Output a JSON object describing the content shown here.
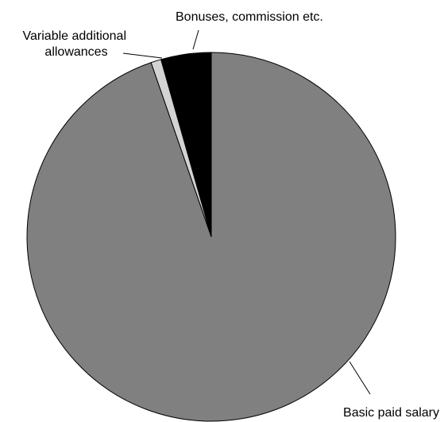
{
  "chart_data": {
    "type": "pie",
    "slices": [
      {
        "label": "Basic paid salary",
        "value": 94.7,
        "color": "#808080",
        "label_lines": [
          "Basic paid salary"
        ]
      },
      {
        "label": "Variable additional allowances",
        "value": 0.9,
        "color": "#d3d3d3",
        "label_lines": [
          "Variable additional",
          "allowances"
        ]
      },
      {
        "label": "Bonuses, commission etc.",
        "value": 4.4,
        "color": "#000000",
        "label_lines": [
          "Bonuses, commission etc."
        ]
      }
    ],
    "start_angle": "12 o'clock",
    "direction": "clockwise",
    "title": "",
    "legend": "none"
  }
}
